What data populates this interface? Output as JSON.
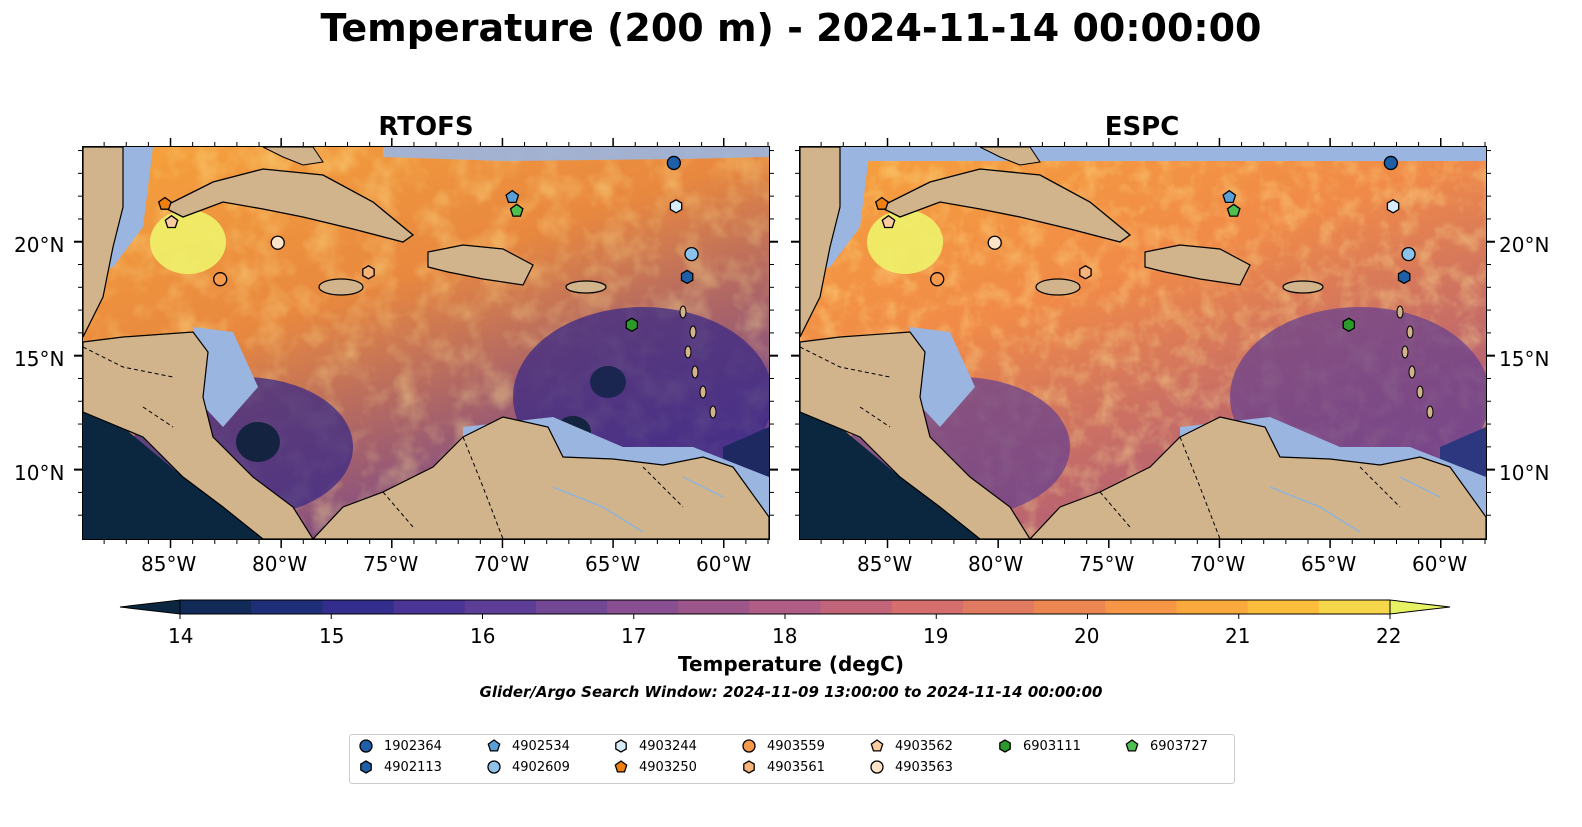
{
  "title": "Temperature (200 m) - 2024-11-14 00:00:00",
  "panels": [
    {
      "title": "RTOFS",
      "style": "rtofs"
    },
    {
      "title": "ESPC",
      "style": "espc"
    }
  ],
  "lon_ticks": [
    "85°W",
    "80°W",
    "75°W",
    "70°W",
    "65°W",
    "60°W"
  ],
  "lat_ticks": [
    "20°N",
    "15°N",
    "10°N"
  ],
  "colorbar": {
    "ticks": [
      "14",
      "15",
      "16",
      "17",
      "18",
      "19",
      "20",
      "21",
      "22"
    ],
    "label": "Temperature (degC)",
    "colors": [
      "#0b2740",
      "#112a58",
      "#1e2f78",
      "#332d8e",
      "#4a3596",
      "#5d3e97",
      "#724793",
      "#874f8f",
      "#9c568a",
      "#b05e85",
      "#c3657a",
      "#d46f6e",
      "#e07a60",
      "#ec8752",
      "#f59746",
      "#faa93d",
      "#fcbd3c",
      "#f6d64a",
      "#e8f265"
    ]
  },
  "search_window": "Glider/Argo Search Window: 2024-11-09 13:00:00 to 2024-11-14 00:00:00",
  "colors": {
    "land": "#d2b48c",
    "shelf": "#9ab5e0",
    "ocean_warm": "#f28a45",
    "ocean_cool": "#4a3596"
  },
  "legend": [
    {
      "id": "1902364",
      "marker": "circle",
      "color": "#1f5fa8"
    },
    {
      "id": "4902113",
      "marker": "hexagon",
      "color": "#1f5fa8"
    },
    {
      "id": "4902534",
      "marker": "pentagon",
      "color": "#5a9fd6"
    },
    {
      "id": "4902609",
      "marker": "circle",
      "color": "#8cc2ec"
    },
    {
      "id": "4903244",
      "marker": "hexagon",
      "color": "#d6ecfb"
    },
    {
      "id": "4903250",
      "marker": "pentagon",
      "color": "#f07f12"
    },
    {
      "id": "4903559",
      "marker": "circle",
      "color": "#f79a4b"
    },
    {
      "id": "4903561",
      "marker": "hexagon",
      "color": "#f9b47a"
    },
    {
      "id": "4903562",
      "marker": "pentagon",
      "color": "#fbcc9f"
    },
    {
      "id": "4903563",
      "marker": "circle",
      "color": "#fde3c8"
    },
    {
      "id": "6903111",
      "marker": "hexagon",
      "color": "#2b9a2b"
    },
    {
      "id": "6903727",
      "marker": "pentagon",
      "color": "#4fbf4f"
    }
  ]
}
